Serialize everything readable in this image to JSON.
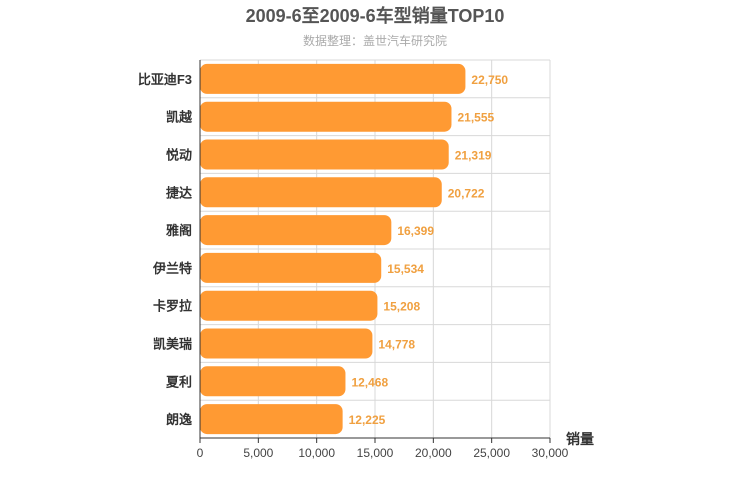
{
  "chart_data": {
    "type": "bar",
    "orientation": "horizontal",
    "title": "2009-6至2009-6车型销量TOP10",
    "subtitle": "数据整理：盖世汽车研究院",
    "xlabel": "销量",
    "ylabel": "",
    "categories": [
      "比亚迪F3",
      "凯越",
      "悦动",
      "捷达",
      "雅阁",
      "伊兰特",
      "卡罗拉",
      "凯美瑞",
      "夏利",
      "朗逸"
    ],
    "values": [
      22750,
      21555,
      21319,
      20722,
      16399,
      15534,
      15208,
      14778,
      12468,
      12225
    ],
    "value_labels": [
      "22,750",
      "21,555",
      "21,319",
      "20,722",
      "16,399",
      "15,534",
      "15,208",
      "14,778",
      "12,468",
      "12,225"
    ],
    "xlim": [
      0,
      30000
    ],
    "xticks": [
      0,
      5000,
      10000,
      15000,
      20000,
      25000,
      30000
    ],
    "xtick_labels": [
      "0",
      "5,000",
      "10,000",
      "15,000",
      "20,000",
      "25,000",
      "30,000"
    ],
    "grid": true,
    "legend": "none",
    "bar_color": "#ff9a33"
  }
}
